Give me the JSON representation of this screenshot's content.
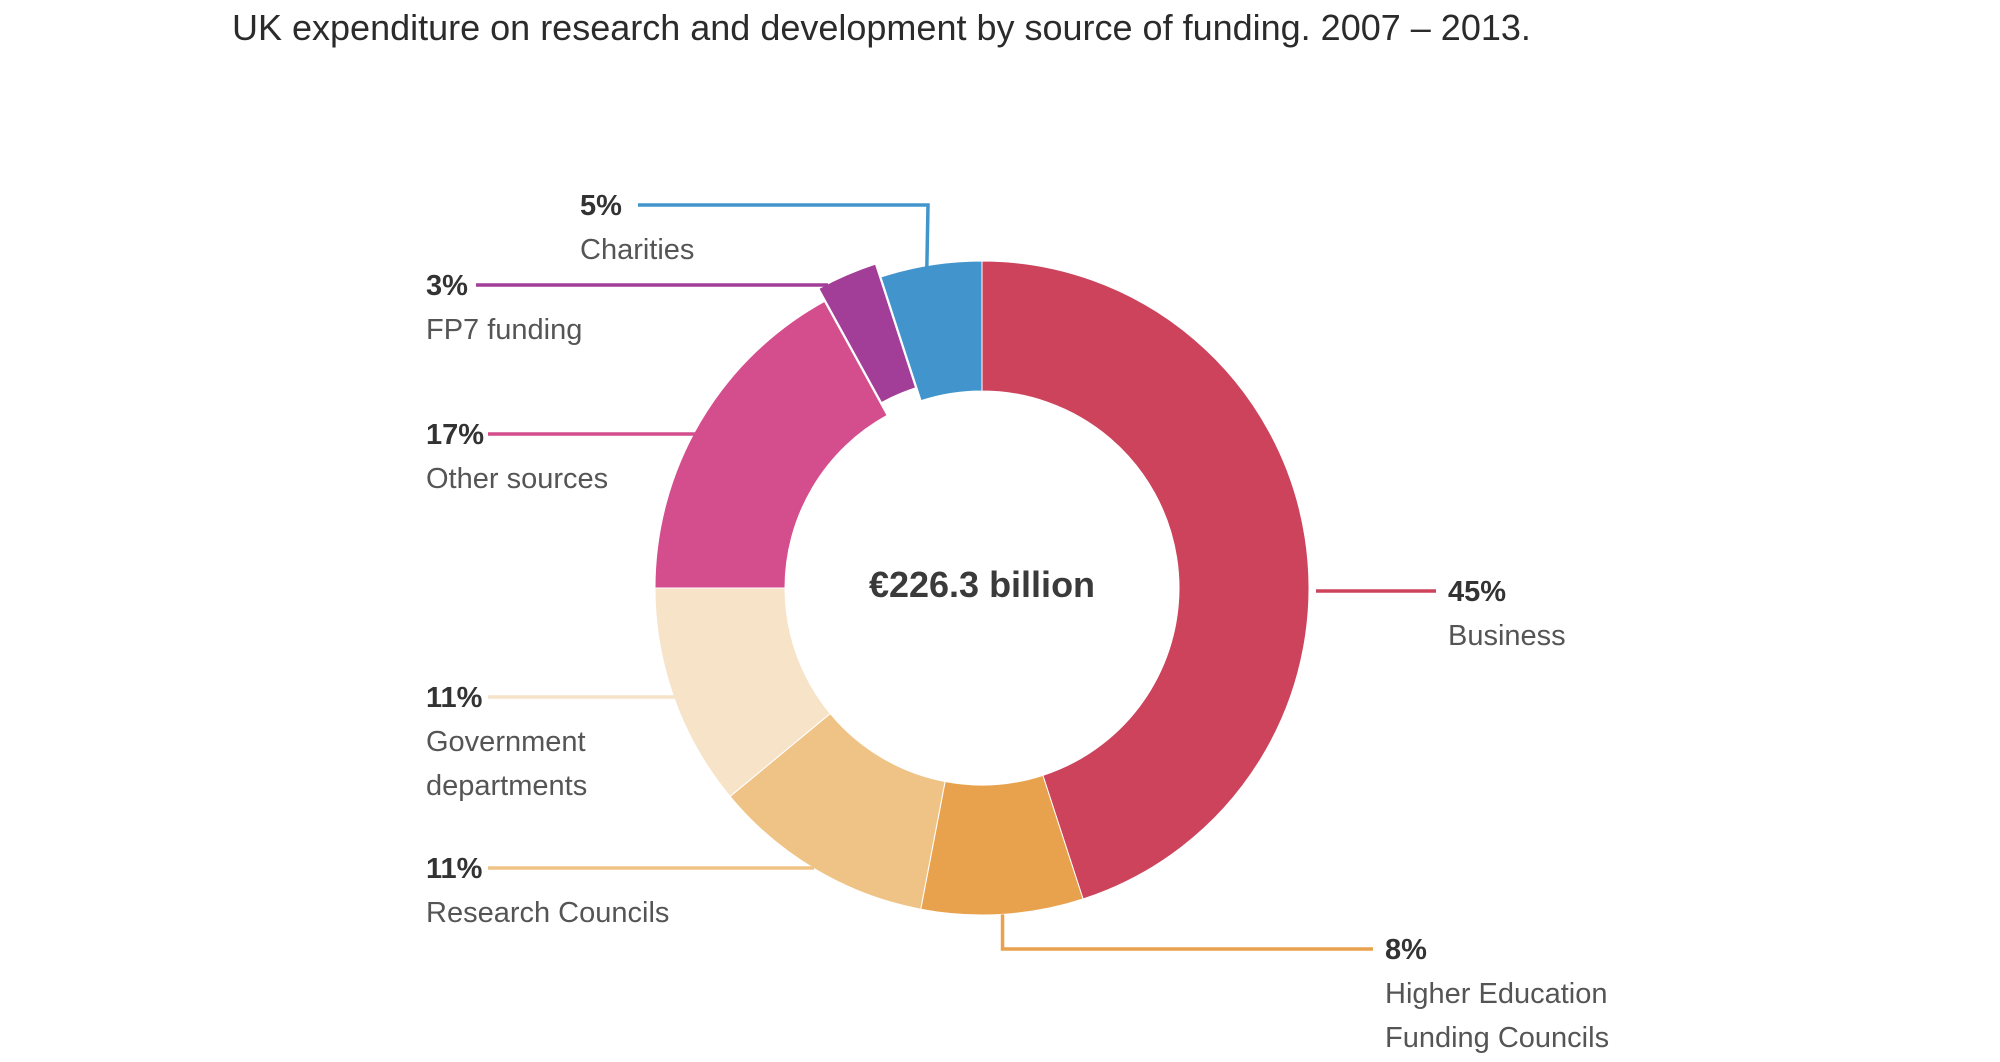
{
  "chart_data": {
    "type": "pie",
    "title": "UK expenditure on research and development by source of funding. 2007 – 2013.",
    "center_label": "€226.3 billion",
    "unit": "%",
    "slices": [
      {
        "name": "Business",
        "lines": [
          "Business"
        ],
        "value": 45,
        "label": "45%",
        "color": "#cc435b"
      },
      {
        "name": "Higher Education Funding Councils",
        "lines": [
          "Higher Education",
          "Funding Councils"
        ],
        "value": 8,
        "label": "8%",
        "color": "#e8a24d"
      },
      {
        "name": "Research Councils",
        "lines": [
          "Research Councils"
        ],
        "value": 11,
        "label": "11%",
        "color": "#efc385"
      },
      {
        "name": "Government departments",
        "lines": [
          "Government",
          "departments"
        ],
        "value": 11,
        "label": "11%",
        "color": "#f6e3c8"
      },
      {
        "name": "Other sources",
        "lines": [
          "Other sources"
        ],
        "value": 17,
        "label": "17%",
        "color": "#d44e8d"
      },
      {
        "name": "FP7 funding",
        "lines": [
          "FP7 funding"
        ],
        "value": 3,
        "label": "3%",
        "color": "#a23d98"
      },
      {
        "name": "Charities",
        "lines": [
          "Charities"
        ],
        "value": 5,
        "label": "5%",
        "color": "#4295cc"
      }
    ]
  }
}
